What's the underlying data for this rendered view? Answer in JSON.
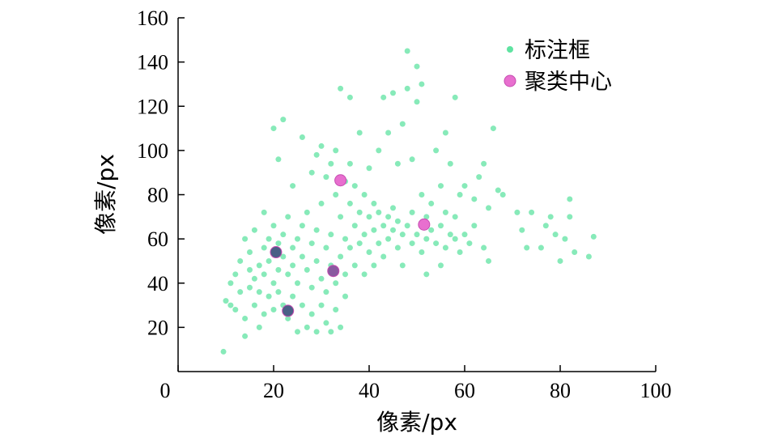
{
  "chart_data": {
    "type": "scatter",
    "xlabel": "像素/px",
    "ylabel": "像素/px",
    "xlim": [
      0,
      100
    ],
    "ylim": [
      0,
      160
    ],
    "xticks": [
      "0",
      "20",
      "40",
      "60",
      "80",
      "100"
    ],
    "yticks": [
      "20",
      "40",
      "60",
      "80",
      "100",
      "120",
      "140",
      "160"
    ],
    "legend_position": "top-right",
    "grid": false,
    "series": [
      {
        "name": "标注框",
        "color": "#5fe3a1",
        "marker": "small-circle",
        "note_points": "dense scatter of annotation boxes; listed values approximate visible distribution",
        "points": [
          [
            9.5,
            9
          ],
          [
            10,
            32
          ],
          [
            11,
            30
          ],
          [
            11,
            40
          ],
          [
            12,
            44
          ],
          [
            12,
            28
          ],
          [
            13,
            50
          ],
          [
            13,
            36
          ],
          [
            14,
            60
          ],
          [
            14,
            24
          ],
          [
            14,
            16
          ],
          [
            15,
            46
          ],
          [
            15,
            38
          ],
          [
            15,
            54
          ],
          [
            16,
            42
          ],
          [
            16,
            30
          ],
          [
            16,
            64
          ],
          [
            17,
            48
          ],
          [
            17,
            20
          ],
          [
            17,
            36
          ],
          [
            18,
            56
          ],
          [
            18,
            72
          ],
          [
            18,
            44
          ],
          [
            18,
            26
          ],
          [
            19,
            60
          ],
          [
            19,
            34
          ],
          [
            19,
            50
          ],
          [
            20,
            66
          ],
          [
            20,
            40
          ],
          [
            20,
            28
          ],
          [
            20,
            110
          ],
          [
            21,
            58
          ],
          [
            21,
            46
          ],
          [
            21,
            36
          ],
          [
            21,
            96
          ],
          [
            22,
            62
          ],
          [
            22,
            52
          ],
          [
            22,
            30
          ],
          [
            22,
            114
          ],
          [
            23,
            44
          ],
          [
            23,
            70
          ],
          [
            23,
            24
          ],
          [
            24,
            56
          ],
          [
            24,
            48
          ],
          [
            24,
            34
          ],
          [
            24,
            84
          ],
          [
            25,
            60
          ],
          [
            25,
            40
          ],
          [
            25,
            18
          ],
          [
            26,
            52
          ],
          [
            26,
            66
          ],
          [
            26,
            30
          ],
          [
            26,
            106
          ],
          [
            27,
            46
          ],
          [
            27,
            72
          ],
          [
            27,
            20
          ],
          [
            28,
            58
          ],
          [
            28,
            38
          ],
          [
            28,
            90
          ],
          [
            28,
            26
          ],
          [
            29,
            50
          ],
          [
            29,
            64
          ],
          [
            29,
            18
          ],
          [
            29,
            98
          ],
          [
            30,
            42
          ],
          [
            30,
            76
          ],
          [
            30,
            30
          ],
          [
            30,
            102
          ],
          [
            31,
            56
          ],
          [
            31,
            88
          ],
          [
            31,
            22
          ],
          [
            31,
            36
          ],
          [
            32,
            48
          ],
          [
            32,
            94
          ],
          [
            32,
            18
          ],
          [
            32,
            62
          ],
          [
            33,
            40
          ],
          [
            33,
            80
          ],
          [
            33,
            28
          ],
          [
            33,
            100
          ],
          [
            34,
            52
          ],
          [
            34,
            70
          ],
          [
            34,
            20
          ],
          [
            34,
            128
          ],
          [
            35,
            44
          ],
          [
            35,
            86
          ],
          [
            35,
            60
          ],
          [
            35,
            34
          ],
          [
            36,
            76
          ],
          [
            36,
            56
          ],
          [
            36,
            94
          ],
          [
            36,
            124
          ],
          [
            37,
            66
          ],
          [
            37,
            48
          ],
          [
            37,
            84
          ],
          [
            38,
            72
          ],
          [
            38,
            58
          ],
          [
            38,
            108
          ],
          [
            39,
            62
          ],
          [
            39,
            80
          ],
          [
            39,
            44
          ],
          [
            40,
            70
          ],
          [
            40,
            54
          ],
          [
            40,
            92
          ],
          [
            41,
            64
          ],
          [
            41,
            76
          ],
          [
            41,
            48
          ],
          [
            42,
            58
          ],
          [
            42,
            72
          ],
          [
            42,
            100
          ],
          [
            43,
            66
          ],
          [
            43,
            124
          ],
          [
            43,
            52
          ],
          [
            44,
            70
          ],
          [
            44,
            60
          ],
          [
            44,
            108
          ],
          [
            45,
            64
          ],
          [
            45,
            74
          ],
          [
            45,
            126
          ],
          [
            46,
            56
          ],
          [
            46,
            68
          ],
          [
            46,
            94
          ],
          [
            47,
            62
          ],
          [
            47,
            48
          ],
          [
            47,
            112
          ],
          [
            48,
            66
          ],
          [
            48,
            145
          ],
          [
            48,
            128
          ],
          [
            49,
            58
          ],
          [
            49,
            72
          ],
          [
            49,
            96
          ],
          [
            50,
            138
          ],
          [
            50,
            62
          ],
          [
            50,
            122
          ],
          [
            51,
            54
          ],
          [
            51,
            80
          ],
          [
            51,
            130
          ],
          [
            52,
            60
          ],
          [
            52,
            70
          ],
          [
            52,
            44
          ],
          [
            53,
            64
          ],
          [
            53,
            76
          ],
          [
            54,
            58
          ],
          [
            54,
            100
          ],
          [
            55,
            66
          ],
          [
            55,
            48
          ],
          [
            55,
            84
          ],
          [
            56,
            56
          ],
          [
            56,
            72
          ],
          [
            56,
            108
          ],
          [
            57,
            62
          ],
          [
            57,
            94
          ],
          [
            58,
            124
          ],
          [
            58,
            60
          ],
          [
            58,
            70
          ],
          [
            59,
            54
          ],
          [
            59,
            80
          ],
          [
            60,
            62
          ],
          [
            60,
            84
          ],
          [
            61,
            58
          ],
          [
            62,
            66
          ],
          [
            62,
            78
          ],
          [
            63,
            88
          ],
          [
            64,
            94
          ],
          [
            64,
            56
          ],
          [
            65,
            74
          ],
          [
            65,
            50
          ],
          [
            66,
            110
          ],
          [
            67,
            82
          ],
          [
            68,
            80
          ],
          [
            71,
            72
          ],
          [
            72,
            64
          ],
          [
            73,
            56
          ],
          [
            74,
            72
          ],
          [
            76,
            56
          ],
          [
            77,
            66
          ],
          [
            78,
            70
          ],
          [
            79,
            62
          ],
          [
            80,
            50
          ],
          [
            81,
            60
          ],
          [
            82,
            78
          ],
          [
            82,
            70
          ],
          [
            83,
            54
          ],
          [
            86,
            52
          ],
          [
            87,
            61
          ]
        ]
      },
      {
        "name": "聚类中心",
        "color": "#e86fcf",
        "marker": "large-circle",
        "points": [
          [
            20.5,
            54
          ],
          [
            23,
            27.5
          ],
          [
            32.5,
            45.5
          ],
          [
            34,
            86.5
          ],
          [
            51.5,
            66.5
          ]
        ]
      }
    ]
  }
}
